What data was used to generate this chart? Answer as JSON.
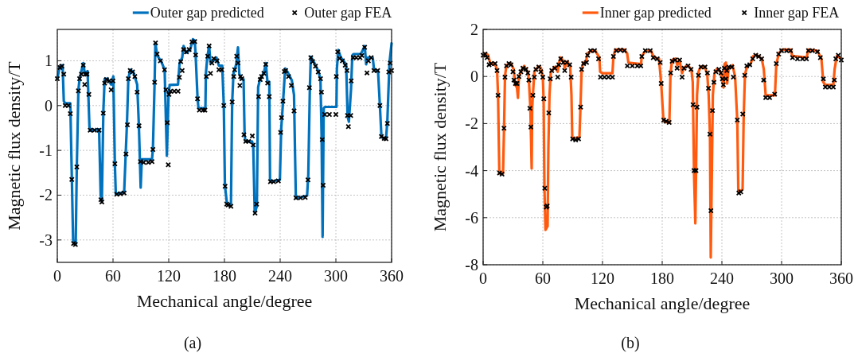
{
  "chart_data": [
    {
      "type": "line",
      "xlabel": "Mechanical angle/degree",
      "ylabel": "Magnetic flux density/T",
      "annotations": [
        "(a)"
      ],
      "xlim": [
        0,
        360
      ],
      "xticks": [
        0,
        60,
        120,
        180,
        240,
        300,
        360
      ],
      "ylim": [
        -3.5,
        1.7
      ],
      "yticks": [
        -3,
        -2,
        -1,
        0,
        1
      ],
      "grid": true,
      "legend": "top right",
      "series": [
        {
          "name": "Outer gap predicted",
          "color": "#0072bd",
          "marker": "none",
          "x": [
            0,
            2.8,
            5.7,
            7,
            8.5,
            14,
            15.6,
            17,
            19.8,
            21,
            22.7,
            24,
            28,
            29.7,
            32.6,
            34.6,
            35.4,
            45,
            46.7,
            48,
            49.6,
            51,
            53.8,
            58,
            60.3,
            62,
            63,
            72,
            73.7,
            75,
            76.5,
            78.5,
            82,
            86,
            87.8,
            89,
            89.8,
            91,
            102,
            103,
            104.8,
            105.6,
            107.6,
            112,
            115.6,
            117,
            118,
            119.8,
            121,
            130,
            131.7,
            134.5,
            136,
            138.8,
            143,
            146,
            148,
            149,
            151,
            152,
            159.5,
            160,
            161.5,
            163.5,
            165,
            167,
            171.4,
            174,
            177.6,
            179.3,
            180.5,
            182.7,
            187,
            188.3,
            189.7,
            192.6,
            194.6,
            196,
            198.3,
            200.6,
            201.7,
            202.6,
            209.7,
            211,
            212.6,
            214.9,
            216.3,
            218.3,
            222.6,
            224.6,
            226.3,
            228.3,
            229.1,
            231,
            239.7,
            241.1,
            243.4,
            245.4,
            248.3,
            252.6,
            254.9,
            256.9,
            258.3,
            269,
            270.3,
            272,
            273,
            276.9,
            281.1,
            283.4,
            284.6,
            285.7,
            286.9,
            288.3,
            300.6,
            301.1,
            302.6,
            305.4,
            311.1,
            312.6,
            314,
            316.3,
            317.7,
            318.9,
            326.9,
            331.1,
            332.6,
            334,
            339.7,
            341.1,
            345.4,
            347.4,
            349.1,
            354,
            355.4,
            357.7,
            360
          ],
          "values": [
            0.6,
            0.89,
            0.9,
            0.1,
            0.05,
            0.05,
            -1.55,
            -3.0,
            -3.1,
            -1.37,
            0.35,
            0.6,
            0.95,
            0.7,
            0.77,
            -0.47,
            -0.56,
            -0.53,
            -2.0,
            -2.13,
            -0.12,
            0.6,
            0.6,
            0.47,
            0.65,
            -1.3,
            -1.98,
            -1.93,
            -1.06,
            -0.41,
            0.6,
            0.8,
            0.74,
            0.47,
            -0.41,
            -1.25,
            -1.83,
            -1.2,
            -1.2,
            -0.95,
            0.53,
            1.39,
            1.12,
            0.98,
            0.8,
            -0.36,
            -1.12,
            0.24,
            0.46,
            0.47,
            0.95,
            1.07,
            1.33,
            1.18,
            1.24,
            1.48,
            1.45,
            1.12,
            0.18,
            -0.06,
            -0.06,
            0.71,
            1.07,
            1.33,
            0.95,
            0.98,
            1.07,
            0.89,
            0.89,
            0,
            -1.78,
            -2.19,
            -2.22,
            0.06,
            0.71,
            0.92,
            1.3,
            0.71,
            0.59,
            0.59,
            -0.65,
            -0.8,
            -0.8,
            -0.89,
            -2.4,
            -2.25,
            0.41,
            0.59,
            0.74,
            0.95,
            0.53,
            0.53,
            -1.66,
            -1.69,
            -1.66,
            -0.53,
            0.18,
            0.83,
            0.74,
            0.56,
            0.24,
            -2.07,
            -2.07,
            -2.01,
            -1.54,
            0.41,
            1.09,
            0.95,
            0.77,
            0.59,
            -0.65,
            -2.93,
            -0.06,
            -0.03,
            -0.03,
            0.83,
            1.24,
            1.07,
            0.92,
            -0.24,
            -0.36,
            0.36,
            1.12,
            1.15,
            1.15,
            1.33,
            0.92,
            1.07,
            1.07,
            0.8,
            0.77,
            0,
            -0.71,
            -0.74,
            -0.36,
            0.95,
            1.39
          ]
        },
        {
          "name": "Outer gap FEA",
          "type": "scatter",
          "color": "#000000",
          "marker": "cross",
          "x": [
            0,
            2.8,
            5,
            7,
            8.5,
            12,
            14,
            15.6,
            17.5,
            19.5,
            21,
            22.7,
            24,
            26,
            28,
            29.5,
            30.5,
            32,
            34,
            35.4,
            40,
            45,
            47,
            48,
            49.5,
            51,
            53,
            56,
            58,
            60,
            62,
            64,
            68,
            72,
            74,
            75.5,
            76.5,
            78.5,
            81,
            83.5,
            86,
            88,
            89.5,
            93,
            98,
            102,
            103,
            104.8,
            105.8,
            107.5,
            111,
            115.5,
            117,
            118.5,
            119.5,
            120.3,
            122,
            126,
            130,
            131.5,
            133,
            134.5,
            136,
            139,
            142,
            145,
            148,
            149,
            151,
            153,
            157,
            159,
            160.5,
            162,
            163.5,
            165,
            166.5,
            168.5,
            172,
            174,
            177,
            179.3,
            180.7,
            182.5,
            184,
            187,
            188.3,
            190,
            191,
            193.2,
            194.6,
            196.6,
            197.3,
            198.7,
            201,
            203,
            206,
            210,
            211,
            213,
            214.6,
            216.8,
            218.5,
            220,
            222.5,
            224.5,
            226.5,
            228.3,
            229.5,
            233,
            238,
            240.5,
            241.5,
            243,
            244.5,
            246,
            249,
            252,
            255,
            257,
            262,
            267,
            270,
            271.5,
            273,
            275,
            278,
            281,
            283.5,
            284.5,
            285.3,
            286.3,
            288,
            293,
            300,
            300.5,
            302,
            304,
            307,
            310,
            312,
            312.5,
            313.5,
            316,
            316.5,
            318.8,
            322,
            326,
            328,
            331,
            333.5,
            335,
            338,
            341,
            345,
            347.4,
            349,
            352,
            354,
            355.5,
            357,
            358.5,
            360
          ],
          "values": [
            0.6,
            0.85,
            0.88,
            0.7,
            0,
            0,
            -0.18,
            -1.65,
            -3.08,
            -3.1,
            -1.37,
            0.33,
            0.6,
            0.7,
            0.9,
            0.47,
            0.7,
            0.7,
            0.25,
            -0.55,
            -0.55,
            -0.55,
            -2.1,
            -2.15,
            -0.17,
            0.5,
            0.58,
            0.55,
            0.35,
            0.55,
            -1.3,
            -1.98,
            -1.97,
            -1.95,
            -1.08,
            -0.43,
            0.6,
            0.78,
            0.75,
            0.65,
            0.3,
            -0.45,
            -1.25,
            -1.27,
            -1.27,
            -1.25,
            -0.98,
            0.52,
            1.4,
            1.15,
            1,
            0.8,
            0.35,
            -0.38,
            -1.32,
            0.25,
            0.32,
            0.32,
            0.32,
            0.63,
            0.98,
            0.78,
            1.25,
            1.2,
            1.25,
            1.42,
            1.43,
            1.13,
            0.15,
            -0.1,
            -0.1,
            -0.1,
            0.65,
            1.1,
            1.33,
            0.72,
            0.95,
            1.05,
            1,
            0.8,
            0.8,
            0,
            -1.8,
            -2.2,
            -2.22,
            -2.25,
            0.08,
            0.65,
            0.8,
            1.1,
            0.95,
            0.45,
            0.65,
            0.6,
            -0.65,
            -0.8,
            -0.8,
            -0.68,
            -0.88,
            -2.4,
            -2.2,
            0.2,
            0.58,
            0.65,
            0.72,
            0.92,
            0.5,
            0.2,
            -1.7,
            -1.7,
            -1.68,
            -0.6,
            -0.27,
            0.1,
            0.76,
            0.78,
            0.65,
            0.45,
            -0.12,
            -2.06,
            -2.06,
            -2.05,
            -1.66,
            0.4,
            1.07,
            0.98,
            0.88,
            0.75,
            0.6,
            0.3,
            -0.76,
            -1.78,
            -0.2,
            -0.2,
            -0.2,
            0.65,
            1.2,
            1.05,
            1,
            0.9,
            0.78,
            -0.22,
            -0.47,
            -0.22,
            0.55,
            1.07,
            1.07,
            1.07,
            1.12,
            1.3,
            0.73,
            1,
            1.07,
            0.78,
            0.78,
            0,
            -0.69,
            -0.73,
            -0.74,
            -0.4,
            0.75,
            0.95,
            0.78
          ]
        }
      ]
    },
    {
      "type": "line",
      "xlabel": "Mechanical angle/degree",
      "ylabel": "Magnetic flux density/T",
      "annotations": [
        "(b)"
      ],
      "xlim": [
        0,
        360
      ],
      "xticks": [
        0,
        60,
        120,
        180,
        240,
        300,
        360
      ],
      "ylim": [
        -8,
        2
      ],
      "yticks": [
        -8,
        -6,
        -4,
        -2,
        0,
        2
      ],
      "grid": true,
      "legend": "top right",
      "series": [
        {
          "name": "Inner gap predicted",
          "color": "#ff5a0e",
          "marker": "none",
          "x": [
            0,
            2,
            4.8,
            7.5,
            11.5,
            14,
            15,
            16.3,
            20,
            21,
            22,
            23.5,
            27.5,
            30.7,
            32.3,
            34,
            35,
            36,
            38,
            41.3,
            44.8,
            46,
            47.5,
            48.8,
            49.3,
            50,
            51.5,
            55.5,
            58,
            60,
            60.8,
            61.6,
            62.7,
            64.8,
            65.6,
            66.7,
            68,
            72.8,
            75,
            76,
            78,
            80.8,
            82,
            84.8,
            87.5,
            88.8,
            89.6,
            96.8,
            97.9,
            99,
            100.8,
            103.5,
            104.8,
            108.8,
            112.8,
            116.8,
            117.6,
            119.5,
            130,
            131,
            132.8,
            142,
            144.8,
            146,
            158.7,
            159.5,
            163.5,
            168.8,
            171.5,
            176.8,
            179,
            181.3,
            187.2,
            188.3,
            189.9,
            193.3,
            195.2,
            197.3,
            200,
            202,
            205.3,
            209.3,
            210.7,
            212,
            213.3,
            214,
            215,
            216.5,
            218.7,
            222.7,
            225.3,
            226.7,
            228,
            228.8,
            229.9,
            230.9,
            232.5,
            234.7,
            238.7,
            240.5,
            241.6,
            242.7,
            244,
            245.3,
            246.7,
            250.7,
            253.3,
            255.5,
            256.5,
            260.8,
            261.9,
            263.2,
            265.3,
            268.8,
            271.5,
            274.7,
            280,
            282.1,
            284,
            293.3,
            294.7,
            297.3,
            300,
            309.3,
            310.7,
            325.3,
            326.7,
            336,
            340,
            341.9,
            344,
            352,
            353.3,
            355.5,
            360
          ],
          "values": [
            0.87,
            0.98,
            0.92,
            0.53,
            0.56,
            0.31,
            -0.8,
            -4.13,
            -4.13,
            -2.24,
            0.03,
            0.48,
            0.59,
            0.31,
            -0.36,
            -0.47,
            -0.91,
            -0.02,
            0.2,
            0.45,
            0.2,
            -0.13,
            -1.36,
            -3.91,
            -1.36,
            -0.8,
            0.2,
            0.42,
            0.37,
            -0.02,
            -1.02,
            -4.69,
            -6.52,
            -6.36,
            -3.02,
            -0.8,
            0.2,
            0.42,
            0.2,
            0.53,
            0.81,
            0.64,
            0.37,
            0.64,
            0.42,
            -0.8,
            -2.63,
            -2.58,
            -1.24,
            0.31,
            0.59,
            0.64,
            0.98,
            1.11,
            1.09,
            0.81,
            0.2,
            0.14,
            0.14,
            0.87,
            1.14,
            1.14,
            0.98,
            0.59,
            0.53,
            0.87,
            1.11,
            1.09,
            0.81,
            0.76,
            -0.3,
            -1.91,
            -1.97,
            0.09,
            0.7,
            0.76,
            0.48,
            0.7,
            0.14,
            0.37,
            0.48,
            0.31,
            -0.24,
            -4.13,
            -6.24,
            -4.13,
            -0.8,
            0.2,
            0.42,
            0.42,
            0.09,
            -0.8,
            -2.47,
            -7.69,
            -4.13,
            -0.8,
            0.14,
            0.31,
            0.2,
            -0.13,
            -0.47,
            0.53,
            0.59,
            -0.3,
            0.31,
            0.48,
            -0.02,
            -1.91,
            -4.91,
            -4.8,
            -1.69,
            0.09,
            0.42,
            0.53,
            0.87,
            0.92,
            0.76,
            0.31,
            -0.8,
            -0.8,
            0.53,
            0.98,
            1.14,
            1.14,
            0.87,
            0.81,
            1.14,
            1.09,
            0.76,
            -0.24,
            -0.36,
            -0.36,
            0.31,
            0.87,
            0.76
          ]
        },
        {
          "name": "Inner gap FEA",
          "type": "scatter",
          "color": "#000000",
          "marker": "cross",
          "x": [
            0,
            2,
            4,
            6,
            8,
            12,
            14,
            15,
            16.5,
            19,
            21,
            22,
            23.5,
            26,
            28,
            30,
            31,
            32.5,
            34,
            36,
            38,
            40,
            43,
            45,
            46,
            47,
            48,
            50,
            51.5,
            53,
            56,
            58,
            60,
            61,
            62,
            63.5,
            64.5,
            66,
            67.5,
            69,
            72,
            75,
            76,
            78,
            80.5,
            82,
            84,
            87,
            88.5,
            90,
            93,
            96,
            98,
            99,
            101,
            104,
            105,
            108,
            112,
            116,
            118,
            122,
            126,
            130,
            131,
            134,
            138,
            142,
            145,
            150,
            155,
            158.5,
            159.5,
            163,
            168,
            171,
            175,
            178,
            179,
            181.5,
            184,
            187,
            188.5,
            190,
            193,
            195,
            197.5,
            200,
            202,
            206,
            209,
            211,
            212,
            214,
            215,
            216.5,
            219,
            223,
            225.5,
            226.5,
            228,
            229,
            230.5,
            232,
            234,
            237,
            239,
            240.5,
            241.5,
            242.5,
            244,
            245,
            247,
            250,
            251.5,
            255.5,
            257,
            259,
            261,
            263,
            265,
            268,
            271,
            274,
            277,
            280,
            282,
            284,
            288,
            293,
            294.7,
            297,
            300,
            305,
            309,
            311,
            316,
            321,
            325,
            327,
            331,
            336,
            339,
            342,
            344,
            348,
            352,
            353,
            354.5,
            357,
            360
          ],
          "values": [
            0.9,
            0.95,
            0.8,
            0.5,
            0.55,
            0.55,
            0.25,
            -0.8,
            -4.1,
            -4.15,
            -2.2,
            -0.03,
            0.45,
            0.55,
            0.5,
            0.2,
            -0.15,
            -0.3,
            -0.3,
            0,
            0.2,
            0.35,
            0.3,
            0.15,
            -0.15,
            -1.35,
            -2.15,
            -0.8,
            -0.03,
            0.3,
            0.4,
            0.2,
            -0.03,
            -0.95,
            -4.75,
            -5.55,
            -5.5,
            -1.55,
            -0.1,
            0.25,
            0.35,
            -0.03,
            0.5,
            0.75,
            0.6,
            0.25,
            0.6,
            0.5,
            -0.03,
            -2.65,
            -2.7,
            -2.65,
            -1.3,
            0.3,
            0.55,
            0.6,
            0.9,
            1.1,
            1.1,
            0.75,
            -0.03,
            -0.03,
            -0.03,
            -0.03,
            0.85,
            1.1,
            1.12,
            1.1,
            0.45,
            0.45,
            0.45,
            0.45,
            0.85,
            1.1,
            1.1,
            0.8,
            0.75,
            0.6,
            -0.3,
            -1.85,
            -1.9,
            -1.95,
            0.15,
            0.65,
            0.7,
            0.35,
            0.7,
            -0.03,
            0.35,
            0.45,
            0.3,
            -1.2,
            -4,
            -4,
            -1.3,
            0.05,
            0.4,
            0.4,
            0.15,
            -0.5,
            -2.45,
            -5.7,
            -1.45,
            -0.25,
            0.2,
            0.3,
            0.15,
            -0.1,
            -0.35,
            0.35,
            -0.1,
            0.25,
            0.4,
            0.4,
            -0.03,
            -1.85,
            -4.95,
            -4.9,
            -1.6,
            0.05,
            0.45,
            0.5,
            0.75,
            0.9,
            0.85,
            0.75,
            -0.15,
            -0.9,
            -0.9,
            -0.75,
            0.55,
            0.95,
            1.1,
            1.1,
            1.1,
            0.8,
            0.75,
            0.75,
            0.75,
            1.1,
            1.1,
            1.05,
            0.8,
            -0.1,
            -0.45,
            -0.45,
            -0.45,
            -0.15,
            0.75,
            0.9,
            0.7
          ]
        }
      ]
    }
  ]
}
